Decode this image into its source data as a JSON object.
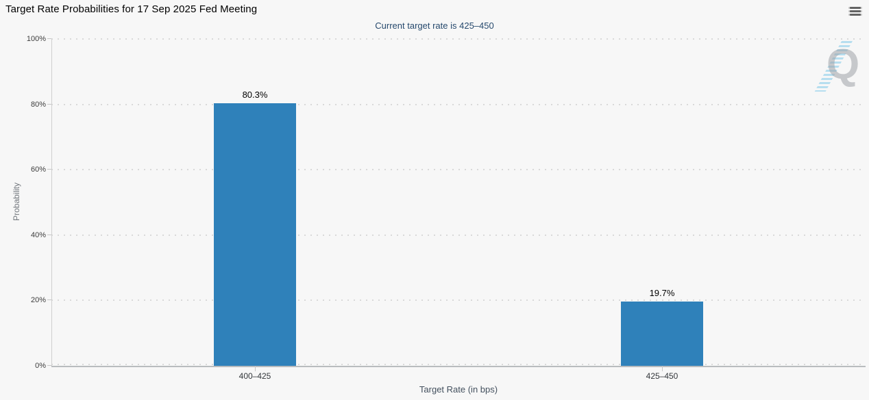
{
  "chart_data": {
    "type": "bar",
    "title": "Target Rate Probabilities for 17 Sep 2025 Fed Meeting",
    "subtitle": "Current target rate is 425–450",
    "categories": [
      "400–425",
      "425–450"
    ],
    "values": [
      80.3,
      19.7
    ],
    "value_labels": [
      "80.3%",
      "19.7%"
    ],
    "xlabel": "Target Rate (in bps)",
    "ylabel": "Probability",
    "ylim": [
      0,
      100
    ],
    "ytick_step": 20,
    "ytick_labels": [
      "0%",
      "20%",
      "40%",
      "60%",
      "80%",
      "100%"
    ],
    "grid": "dotted-horizontal",
    "legend": "none",
    "bar_color": "#2f81ba",
    "subtitle_color": "#26496d",
    "background_color": "#f7f7f7"
  },
  "header": {
    "menu_icon": "hamburger-menu"
  },
  "watermark": {
    "letter": "Q"
  }
}
